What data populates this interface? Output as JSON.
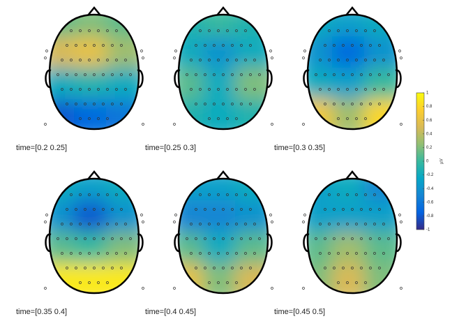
{
  "chart_data": {
    "type": "topoplot",
    "colormap": [
      "#352a87",
      "#0363e1",
      "#1485d4",
      "#06a7c6",
      "#38b99e",
      "#92bf73",
      "#d9ba56",
      "#fcce2e",
      "#f9fb0e"
    ],
    "colorbar": {
      "lim": [
        -1,
        1
      ],
      "ticks": [
        1,
        0.8,
        0.6,
        0.4,
        0.2,
        0,
        -0.2,
        -0.4,
        -0.6,
        -0.8,
        -1
      ],
      "label": "µV"
    },
    "panels": [
      {
        "label": "time=[0.2 0.25]",
        "field": [
          [
            0.1,
            0.2,
            0.1
          ],
          [
            0.5,
            0.6,
            0.3
          ],
          [
            -0.2,
            -0.1,
            -0.2
          ],
          [
            -0.8,
            -0.7,
            -0.6
          ]
        ]
      },
      {
        "label": "time=[0.25 0.3]",
        "field": [
          [
            -0.1,
            0,
            -0.1
          ],
          [
            -0.2,
            -0.4,
            -0.2
          ],
          [
            0.1,
            -0.2,
            0.2
          ],
          [
            -0.1,
            -0.2,
            -0.1
          ]
        ]
      },
      {
        "label": "time=[0.3 0.35]",
        "field": [
          [
            -0.2,
            -0.3,
            -0.2
          ],
          [
            -0.4,
            -0.7,
            -0.4
          ],
          [
            -0.2,
            -0.3,
            0
          ],
          [
            0.7,
            0.3,
            0.8
          ]
        ]
      },
      {
        "label": "time=[0.35 0.4]",
        "field": [
          [
            -0.2,
            -0.3,
            -0.2
          ],
          [
            -0.4,
            -0.8,
            -0.4
          ],
          [
            0.1,
            0,
            0.2
          ],
          [
            0.9,
            0.9,
            0.9
          ]
        ]
      },
      {
        "label": "time=[0.4 0.45]",
        "field": [
          [
            -0.3,
            -0.3,
            -0.2
          ],
          [
            -0.5,
            -0.5,
            -0.4
          ],
          [
            0.1,
            -0.2,
            0.1
          ],
          [
            0.6,
            0.2,
            0.5
          ]
        ]
      },
      {
        "label": "time=[0.45 0.5]",
        "field": [
          [
            -0.3,
            -0.2,
            -0.5
          ],
          [
            -0.3,
            -0.3,
            -0.3
          ],
          [
            0.1,
            0.3,
            0.1
          ],
          [
            0.2,
            0.5,
            0.2
          ]
        ]
      }
    ]
  }
}
